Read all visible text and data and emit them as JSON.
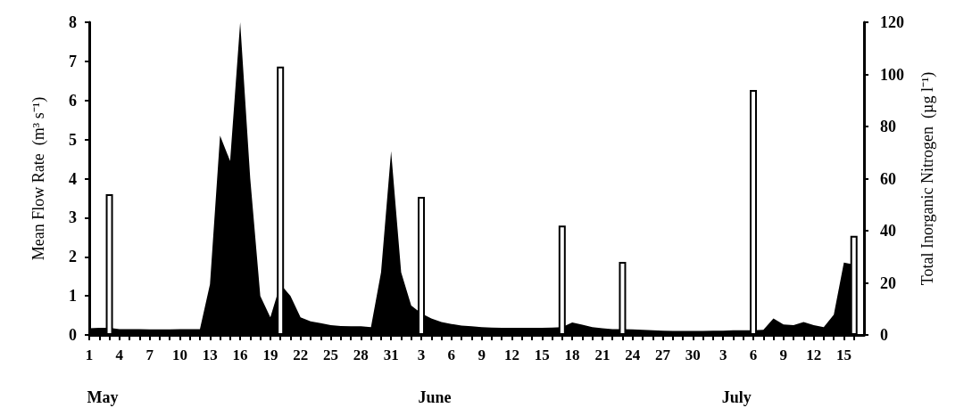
{
  "chart_data": {
    "type": "area",
    "ylabel": "Mean Flow Rate  (m³ s⁻¹)",
    "y2label": "Total Inorganic Nitrogen  (µg l⁻¹)",
    "xlim": [
      "--05-01",
      "--07-17"
    ],
    "xticks": [
      {
        "value": "--05-01",
        "label": "1"
      },
      {
        "value": "--05-02",
        "label": null
      },
      {
        "value": "--05-03",
        "label": null
      },
      {
        "value": "--05-04",
        "label": "4"
      },
      {
        "value": "--05-05",
        "label": null
      },
      {
        "value": "--05-06",
        "label": null
      },
      {
        "value": "--05-07",
        "label": "7"
      },
      {
        "value": "--05-08",
        "label": null
      },
      {
        "value": "--05-09",
        "label": null
      },
      {
        "value": "--05-10",
        "label": "10"
      },
      {
        "value": "--05-11",
        "label": null
      },
      {
        "value": "--05-12",
        "label": null
      },
      {
        "value": "--05-13",
        "label": "13"
      },
      {
        "value": "--05-14",
        "label": null
      },
      {
        "value": "--05-15",
        "label": null
      },
      {
        "value": "--05-16",
        "label": "16"
      },
      {
        "value": "--05-17",
        "label": null
      },
      {
        "value": "--05-18",
        "label": null
      },
      {
        "value": "--05-19",
        "label": "19"
      },
      {
        "value": "--05-20",
        "label": null
      },
      {
        "value": "--05-21",
        "label": null
      },
      {
        "value": "--05-22",
        "label": "22"
      },
      {
        "value": "--05-23",
        "label": null
      },
      {
        "value": "--05-24",
        "label": null
      },
      {
        "value": "--05-25",
        "label": "25"
      },
      {
        "value": "--05-26",
        "label": null
      },
      {
        "value": "--05-27",
        "label": null
      },
      {
        "value": "--05-28",
        "label": "28"
      },
      {
        "value": "--05-29",
        "label": null
      },
      {
        "value": "--05-30",
        "label": null
      },
      {
        "value": "--05-31",
        "label": "31"
      },
      {
        "value": "--06-01",
        "label": null
      },
      {
        "value": "--06-02",
        "label": null
      },
      {
        "value": "--06-03",
        "label": "3"
      },
      {
        "value": "--06-04",
        "label": null
      },
      {
        "value": "--06-05",
        "label": null
      },
      {
        "value": "--06-06",
        "label": "6"
      },
      {
        "value": "--06-07",
        "label": null
      },
      {
        "value": "--06-08",
        "label": null
      },
      {
        "value": "--06-09",
        "label": "9"
      },
      {
        "value": "--06-10",
        "label": null
      },
      {
        "value": "--06-11",
        "label": null
      },
      {
        "value": "--06-12",
        "label": "12"
      },
      {
        "value": "--06-13",
        "label": null
      },
      {
        "value": "--06-14",
        "label": null
      },
      {
        "value": "--06-15",
        "label": "15"
      },
      {
        "value": "--06-16",
        "label": null
      },
      {
        "value": "--06-17",
        "label": null
      },
      {
        "value": "--06-18",
        "label": "18"
      },
      {
        "value": "--06-19",
        "label": null
      },
      {
        "value": "--06-20",
        "label": null
      },
      {
        "value": "--06-21",
        "label": "21"
      },
      {
        "value": "--06-22",
        "label": null
      },
      {
        "value": "--06-23",
        "label": null
      },
      {
        "value": "--06-24",
        "label": "24"
      },
      {
        "value": "--06-25",
        "label": null
      },
      {
        "value": "--06-26",
        "label": null
      },
      {
        "value": "--06-27",
        "label": "27"
      },
      {
        "value": "--06-28",
        "label": null
      },
      {
        "value": "--06-29",
        "label": null
      },
      {
        "value": "--06-30",
        "label": "30"
      },
      {
        "value": "--07-01",
        "label": null
      },
      {
        "value": "--07-02",
        "label": null
      },
      {
        "value": "--07-03",
        "label": "3"
      },
      {
        "value": "--07-04",
        "label": null
      },
      {
        "value": "--07-05",
        "label": null
      },
      {
        "value": "--07-06",
        "label": "6"
      },
      {
        "value": "--07-07",
        "label": null
      },
      {
        "value": "--07-08",
        "label": null
      },
      {
        "value": "--07-09",
        "label": "9"
      },
      {
        "value": "--07-10",
        "label": null
      },
      {
        "value": "--07-11",
        "label": null
      },
      {
        "value": "--07-12",
        "label": "12"
      },
      {
        "value": "--07-13",
        "label": null
      },
      {
        "value": "--07-14",
        "label": null
      },
      {
        "value": "--07-15",
        "label": "15"
      },
      {
        "value": "--07-16",
        "label": null
      }
    ],
    "ylim": [
      0,
      8
    ],
    "yticks": [
      0,
      1,
      2,
      3,
      4,
      5,
      6,
      7,
      8
    ],
    "y2lim": [
      0,
      120
    ],
    "y2ticks": [
      0,
      20,
      40,
      60,
      80,
      100,
      120
    ],
    "series": [
      {
        "color": "#000000",
        "x": [
          "--05-01",
          "--05-02",
          "--05-03",
          "--05-04",
          "--05-05",
          "--05-06",
          "--05-07",
          "--05-08",
          "--05-09",
          "--05-10",
          "--05-11",
          "--05-12",
          "--05-13",
          "--05-14",
          "--05-15",
          "--05-16",
          "--05-17",
          "--05-18",
          "--05-19",
          "--05-20",
          "--05-21",
          "--05-22",
          "--05-23",
          "--05-24",
          "--05-25",
          "--05-26",
          "--05-27",
          "--05-28",
          "--05-29",
          "--05-30",
          "--05-31",
          "--06-01",
          "--06-02",
          "--06-03",
          "--06-04",
          "--06-05",
          "--06-06",
          "--06-07",
          "--06-08",
          "--06-09",
          "--06-10",
          "--06-11",
          "--06-12",
          "--06-13",
          "--06-14",
          "--06-15",
          "--06-16",
          "--06-17",
          "--06-18",
          "--06-19",
          "--06-20",
          "--06-21",
          "--06-22",
          "--06-23",
          "--06-24",
          "--06-25",
          "--06-26",
          "--06-27",
          "--06-28",
          "--06-29",
          "--06-30",
          "--07-01",
          "--07-02",
          "--07-03",
          "--07-04",
          "--07-05",
          "--07-06",
          "--07-07",
          "--07-08",
          "--07-09",
          "--07-10",
          "--07-11",
          "--07-12",
          "--07-13",
          "--07-14",
          "--07-15",
          "--07-16"
        ],
        "values": [
          0.17,
          0.18,
          0.18,
          0.15,
          0.15,
          0.15,
          0.14,
          0.14,
          0.14,
          0.15,
          0.15,
          0.15,
          1.3,
          5.1,
          4.45,
          8.0,
          4.0,
          1.0,
          0.45,
          1.3,
          1.0,
          0.45,
          0.35,
          0.3,
          0.25,
          0.23,
          0.22,
          0.22,
          0.2,
          1.6,
          4.7,
          1.6,
          0.75,
          0.55,
          0.42,
          0.33,
          0.28,
          0.24,
          0.22,
          0.2,
          0.19,
          0.18,
          0.18,
          0.18,
          0.18,
          0.18,
          0.19,
          0.2,
          0.32,
          0.26,
          0.2,
          0.17,
          0.15,
          0.15,
          0.14,
          0.13,
          0.12,
          0.11,
          0.1,
          0.1,
          0.1,
          0.1,
          0.11,
          0.11,
          0.12,
          0.12,
          0.12,
          0.13,
          0.42,
          0.27,
          0.25,
          0.33,
          0.25,
          0.2,
          0.52,
          1.85,
          1.8
        ]
      },
      {
        "type": "bar",
        "axis": "y2",
        "color": "#ffffff",
        "x": [
          "--05-03",
          "--05-20",
          "--06-03",
          "--06-17",
          "--06-23",
          "--07-06",
          "--07-16"
        ],
        "values": [
          54,
          103,
          53,
          42,
          28,
          94,
          38
        ]
      }
    ],
    "annotations": [
      "May",
      "June",
      "July"
    ]
  }
}
